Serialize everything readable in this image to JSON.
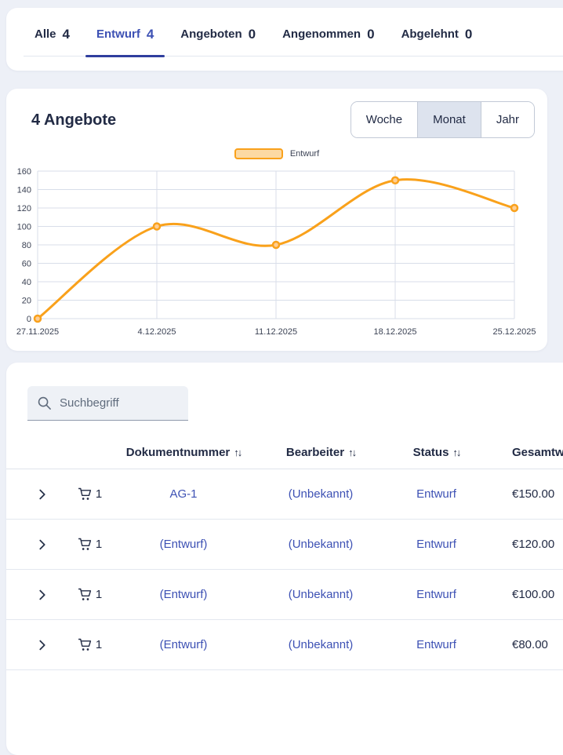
{
  "tabs": [
    {
      "label": "Alle",
      "count": "4",
      "active": false
    },
    {
      "label": "Entwurf",
      "count": "4",
      "active": true
    },
    {
      "label": "Angeboten",
      "count": "0",
      "active": false
    },
    {
      "label": "Angenommen",
      "count": "0",
      "active": false
    },
    {
      "label": "Abgelehnt",
      "count": "0",
      "active": false
    }
  ],
  "chart_card": {
    "title": "4 Angebote",
    "range_buttons": [
      {
        "label": "Woche",
        "selected": false
      },
      {
        "label": "Monat",
        "selected": true
      },
      {
        "label": "Jahr",
        "selected": false
      }
    ],
    "legend_label": "Entwurf"
  },
  "chart_data": {
    "type": "line",
    "title": "4 Angebote",
    "x": [
      "27.11.2025",
      "4.12.2025",
      "11.12.2025",
      "18.12.2025",
      "25.12.2025"
    ],
    "series": [
      {
        "name": "Entwurf",
        "values": [
          0,
          100,
          80,
          150,
          120
        ]
      }
    ],
    "ylim": [
      0,
      160
    ],
    "ytick_step": 20,
    "grid": true,
    "legend_position": "top",
    "xlabel": "",
    "ylabel": ""
  },
  "search": {
    "placeholder": "Suchbegriff"
  },
  "table": {
    "sort_icon": "↑↓",
    "columns": [
      "Dokumentnummer",
      "Bearbeiter",
      "Status",
      "Gesamtwert"
    ],
    "rows": [
      {
        "cart_count": "1",
        "dokumentnummer": "AG-1",
        "bearbeiter": "(Unbekannt)",
        "status": "Entwurf",
        "gesamtwert": "€150.00"
      },
      {
        "cart_count": "1",
        "dokumentnummer": "(Entwurf)",
        "bearbeiter": "(Unbekannt)",
        "status": "Entwurf",
        "gesamtwert": "€120.00"
      },
      {
        "cart_count": "1",
        "dokumentnummer": "(Entwurf)",
        "bearbeiter": "(Unbekannt)",
        "status": "Entwurf",
        "gesamtwert": "€100.00"
      },
      {
        "cart_count": "1",
        "dokumentnummer": "(Entwurf)",
        "bearbeiter": "(Unbekannt)",
        "status": "Entwurf",
        "gesamtwert": "€80.00"
      }
    ]
  },
  "colors": {
    "accent_blue": "#3D51B4",
    "dark_navy": "#222B45",
    "line_orange": "#F9A11B",
    "marker_fill": "#FFCE93",
    "legend_fill": "#FCD9A3",
    "toggle_selected_bg": "#DDE3EE",
    "grid_line": "#D8DEE9",
    "axis_text": "#3B4254"
  }
}
